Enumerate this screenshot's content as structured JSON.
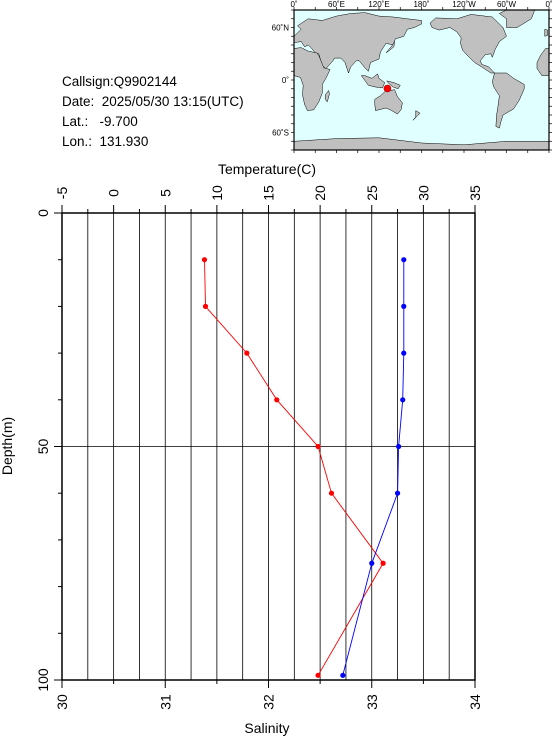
{
  "station": {
    "callsign": "Callsign:Q9902144",
    "date": "Date:  2025/05/30 13:15(UTC)",
    "lat": "Lat.:   -9.700",
    "lon": "Lon.:  131.930"
  },
  "map": {
    "lon_labels": [
      "0˚",
      "60˚E",
      "120˚E",
      "180˚",
      "120˚W",
      "60˚W",
      "0˚"
    ],
    "lat_labels": [
      "60˚N",
      "0˚",
      "60˚S"
    ],
    "station_lon": 131.93,
    "station_lat": -9.7,
    "colors": {
      "ocean": "#e0ffff",
      "land": "#c0c0c0",
      "marker": "#ff0000"
    }
  },
  "chart_data": {
    "type": "line",
    "y_axis": {
      "label": "Depth(m)",
      "range": [
        0,
        100
      ],
      "ticks": [
        "0",
        "50",
        "100"
      ],
      "inverted": true
    },
    "top_axis": {
      "label": "Temperature(C)",
      "range": [
        -5,
        35
      ],
      "ticks": [
        "-5",
        "0",
        "5",
        "10",
        "15",
        "20",
        "25",
        "30",
        "35"
      ]
    },
    "bottom_axis": {
      "label": "Salinity",
      "range": [
        30,
        34
      ],
      "ticks": [
        "30",
        "31",
        "32",
        "33",
        "34"
      ]
    },
    "grid": true,
    "series": [
      {
        "key": "temperature",
        "color": "#ff0000",
        "axis": "top",
        "depth": [
          10,
          20,
          30,
          40,
          50,
          60,
          75,
          99
        ],
        "values": [
          8.8,
          8.9,
          12.9,
          15.8,
          19.8,
          21.1,
          26.1,
          19.8
        ]
      },
      {
        "key": "salinity",
        "color": "#0000ff",
        "axis": "bottom",
        "depth": [
          10,
          20,
          30,
          40,
          50,
          60,
          75,
          99
        ],
        "values": [
          33.31,
          33.31,
          33.31,
          33.3,
          33.26,
          33.25,
          33.0,
          32.72
        ]
      }
    ]
  }
}
